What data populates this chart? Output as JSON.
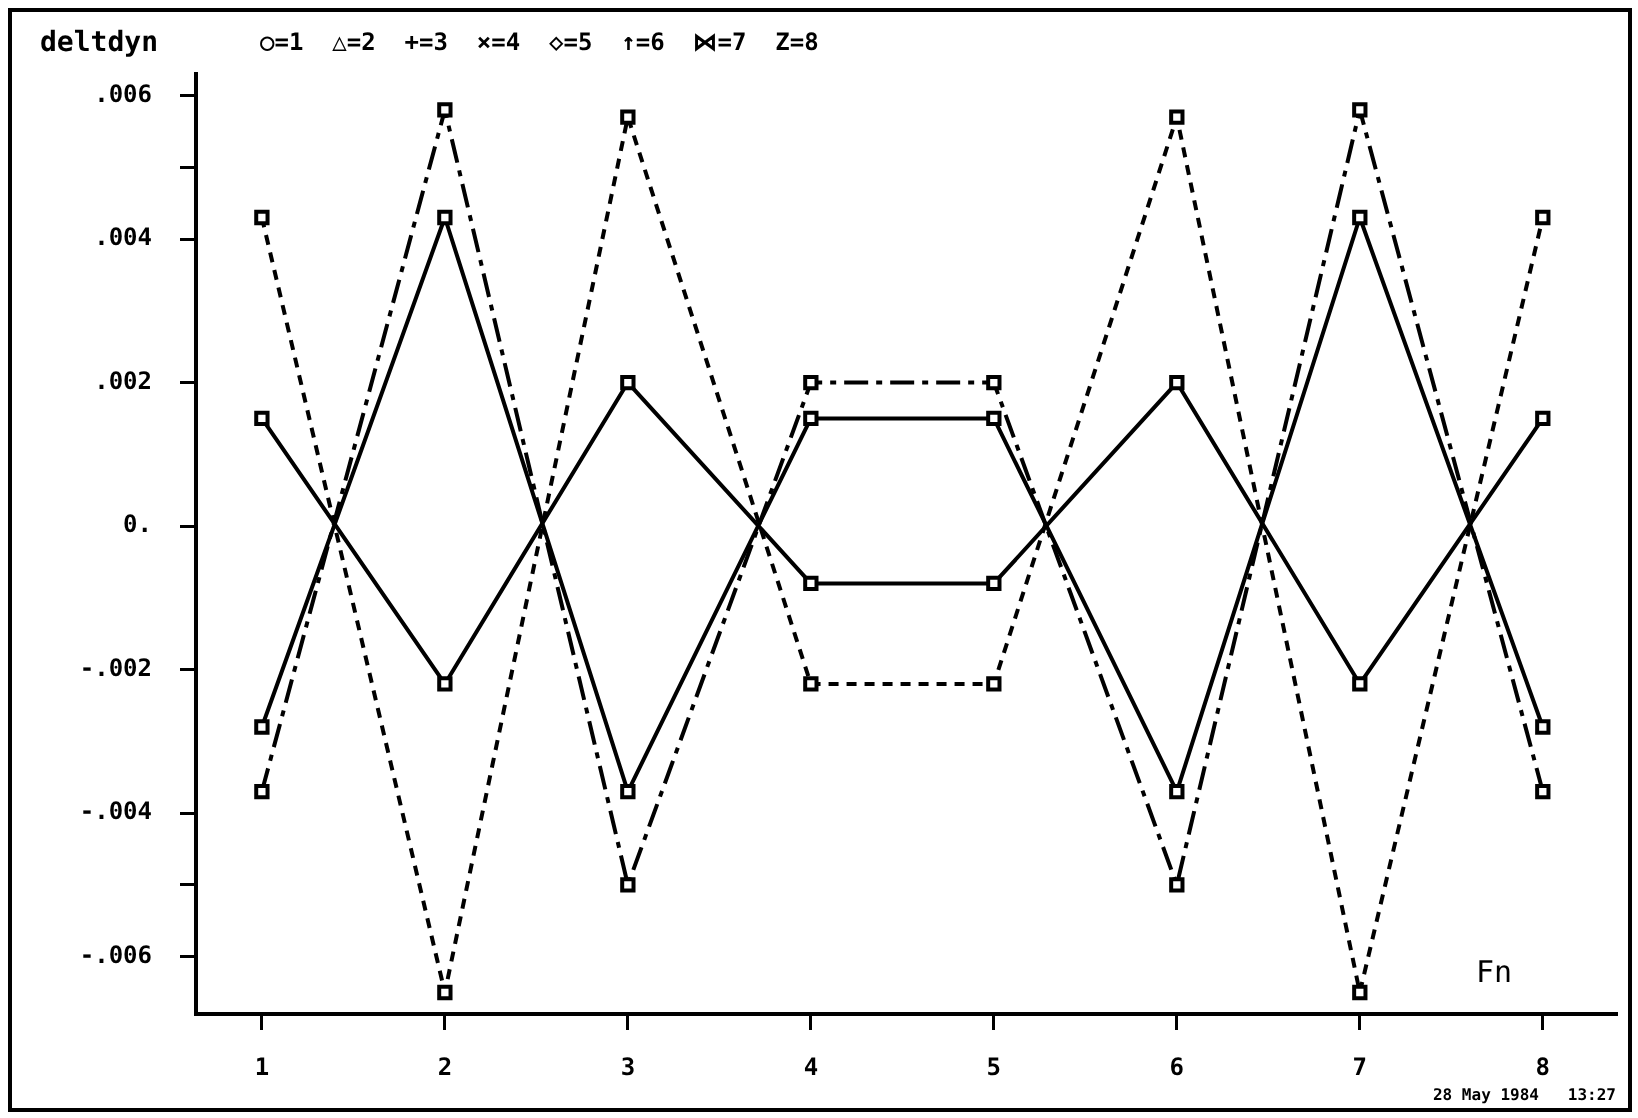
{
  "chart_data": {
    "type": "line",
    "ylabel": "deltdyn",
    "xlabel": "Fn",
    "annotations": [
      "○=1  △=2  +=3  ×=4  ◇=5  ↑=6  ⋈=7  Z=8",
      "28 May 1984   13:27"
    ],
    "x": [
      1,
      2,
      3,
      4,
      5,
      6,
      7,
      8
    ],
    "xlim": [
      0.64,
      8.4
    ],
    "xticks": [
      1,
      2,
      3,
      4,
      5,
      6,
      7,
      8
    ],
    "ylim": [
      -0.0068,
      0.0063
    ],
    "yticks": [
      {
        "value": -0.006,
        "label": "-.006"
      },
      {
        "value": -0.005,
        "label": null
      },
      {
        "value": -0.004,
        "label": "-.004"
      },
      {
        "value": -0.002,
        "label": "-.002"
      },
      {
        "value": 0,
        "label": "0."
      },
      {
        "value": 0.002,
        "label": ".002"
      },
      {
        "value": 0.004,
        "label": ".004"
      },
      {
        "value": 0.005,
        "label": null
      },
      {
        "value": 0.006,
        "label": ".006"
      }
    ],
    "grid": false,
    "marker": "square",
    "series": [
      {
        "color": "#000000",
        "line_style": "solid",
        "values": [
          0.0015,
          -0.0022,
          0.002,
          -0.0008,
          -0.0008,
          0.002,
          -0.0022,
          0.0015
        ]
      },
      {
        "color": "#000000",
        "line_style": "solid",
        "values": [
          -0.0028,
          0.0043,
          -0.0037,
          0.0015,
          0.0015,
          -0.0037,
          0.0043,
          -0.0028
        ]
      },
      {
        "color": "#000000",
        "line_style": "dashed",
        "values": [
          -0.0037,
          0.0058,
          -0.005,
          0.002,
          0.002,
          -0.005,
          0.0058,
          -0.0037
        ]
      },
      {
        "color": "#000000",
        "line_style": "dotted",
        "values": [
          0.0043,
          -0.0065,
          0.0057,
          -0.0022,
          -0.0022,
          0.0057,
          -0.0065,
          0.0043
        ]
      }
    ]
  }
}
